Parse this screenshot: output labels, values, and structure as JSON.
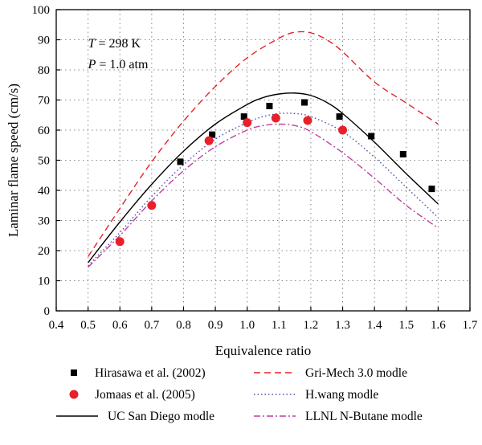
{
  "chart_data": {
    "type": "line",
    "xlabel": "Equivalence ratio",
    "ylabel": "Laminar flame speed (cm/s)",
    "xlim": [
      0.4,
      1.7
    ],
    "ylim": [
      0,
      100
    ],
    "xticks": [
      "0.4",
      "0.5",
      "0.6",
      "0.7",
      "0.8",
      "0.9",
      "1.0",
      "1.1",
      "1.2",
      "1.3",
      "1.4",
      "1.5",
      "1.6",
      "1.7"
    ],
    "yticks": [
      "0",
      "10",
      "20",
      "30",
      "40",
      "50",
      "60",
      "70",
      "80",
      "90",
      "100"
    ],
    "grid": true,
    "annotations": {
      "temperature": {
        "symbol": "T",
        "text": " = 298 K"
      },
      "pressure": {
        "symbol": "P",
        "text": " = 1.0 atm"
      }
    },
    "legend_placement": "bottom, outside plot, two columns",
    "series": [
      {
        "name": "Hirasawa et al. (2002)",
        "kind": "marker-square",
        "color": "#000000",
        "x": [
          0.79,
          0.89,
          0.99,
          1.07,
          1.18,
          1.29,
          1.39,
          1.49,
          1.58
        ],
        "y": [
          49.5,
          58.5,
          64.5,
          68,
          69.2,
          64.5,
          58,
          52,
          40.5
        ]
      },
      {
        "name": "Jomaas et al. (2005)",
        "kind": "marker-circle",
        "color": "#e8202a",
        "x": [
          0.6,
          0.7,
          0.88,
          1.0,
          1.09,
          1.19,
          1.3
        ],
        "y": [
          23,
          35,
          56.5,
          62.5,
          64,
          63.2,
          60
        ]
      },
      {
        "name": "UC San Diego modle",
        "kind": "line-solid",
        "color": "#000000",
        "x": [
          0.5,
          0.6,
          0.7,
          0.8,
          0.9,
          1.0,
          1.05,
          1.1,
          1.15,
          1.2,
          1.25,
          1.3,
          1.4,
          1.5,
          1.6
        ],
        "y": [
          16,
          29.5,
          42,
          53,
          62,
          68.5,
          70.8,
          72,
          72.3,
          71.5,
          69.2,
          65.5,
          56,
          45.5,
          35.5
        ]
      },
      {
        "name": "Gri-Mech 3.0 modle",
        "kind": "line-dashed",
        "color": "#e8202a",
        "x": [
          0.5,
          0.6,
          0.7,
          0.8,
          0.9,
          1.0,
          1.1,
          1.15,
          1.2,
          1.25,
          1.3,
          1.4,
          1.5,
          1.6
        ],
        "y": [
          18,
          34,
          49.5,
          63,
          74.5,
          84,
          90.5,
          92.5,
          92.3,
          90,
          86,
          76,
          69,
          62
        ]
      },
      {
        "name": "H.wang modle",
        "kind": "line-dotted",
        "color": "#4b50a8",
        "x": [
          0.5,
          0.6,
          0.7,
          0.8,
          0.9,
          1.0,
          1.05,
          1.1,
          1.15,
          1.2,
          1.3,
          1.4,
          1.5,
          1.6
        ],
        "y": [
          15,
          26,
          38,
          48.5,
          57,
          62.5,
          64.5,
          65.5,
          65.5,
          64.5,
          59.5,
          51,
          41,
          31
        ]
      },
      {
        "name": "LLNL N-Butane modle",
        "kind": "line-dashdot",
        "color": "#c03fa0",
        "x": [
          0.5,
          0.6,
          0.7,
          0.8,
          0.9,
          1.0,
          1.05,
          1.1,
          1.15,
          1.2,
          1.3,
          1.4,
          1.5,
          1.6
        ],
        "y": [
          14.5,
          25,
          36.5,
          46.5,
          54.5,
          60,
          61.5,
          62,
          61.5,
          59.5,
          52.5,
          44,
          35,
          27.5
        ]
      }
    ]
  }
}
